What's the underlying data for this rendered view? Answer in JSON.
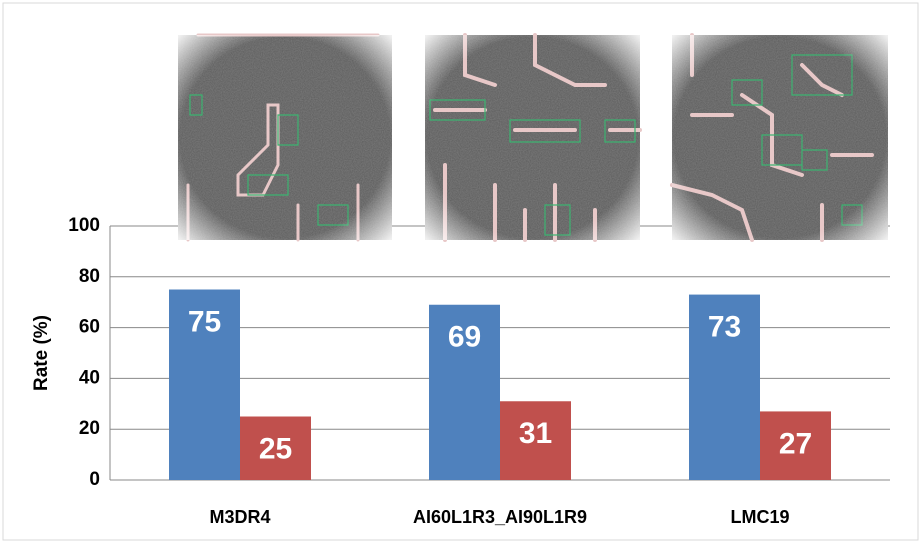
{
  "chart_data": {
    "type": "bar",
    "y_label": "Rate (%)",
    "categories": [
      "M3DR4",
      "AI60L1R3_AI90L1R9",
      "LMC19"
    ],
    "series": [
      {
        "color": "#4f81bd",
        "values": [
          75,
          69,
          73
        ]
      },
      {
        "color": "#c0504d",
        "values": [
          25,
          31,
          27
        ]
      }
    ],
    "ylim": [
      0,
      100
    ],
    "yticks": [
      0,
      20,
      40,
      60,
      80,
      100
    ],
    "grid": true
  }
}
